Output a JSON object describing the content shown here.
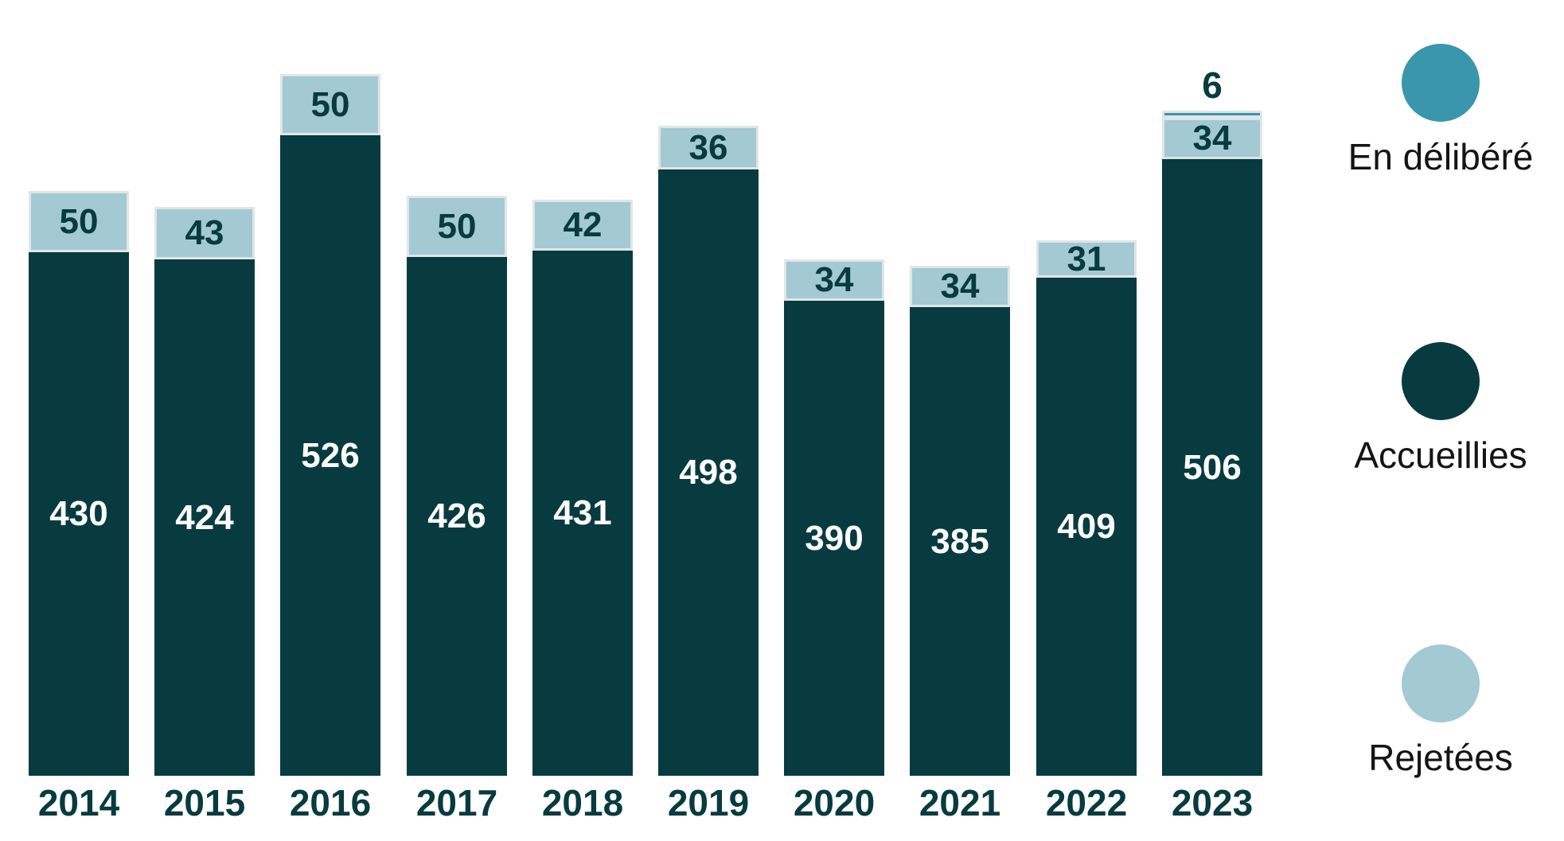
{
  "chart_data": {
    "type": "bar",
    "stacked": true,
    "categories": [
      "2014",
      "2015",
      "2016",
      "2017",
      "2018",
      "2019",
      "2020",
      "2021",
      "2022",
      "2023"
    ],
    "series": [
      {
        "name": "Accueillies",
        "key": "accueillies",
        "color": "#073b40",
        "label_color": "#ffffff",
        "values": [
          430,
          424,
          526,
          426,
          431,
          498,
          390,
          385,
          409,
          506
        ]
      },
      {
        "name": "Rejetées",
        "key": "rejetees",
        "color": "#a3c9d3",
        "label_color": "#073b40",
        "values": [
          50,
          43,
          50,
          50,
          42,
          36,
          34,
          34,
          31,
          34
        ]
      },
      {
        "name": "En délibéré",
        "key": "endelibere",
        "color": "#3996ac",
        "label_color": "#073b40",
        "label_position": "above",
        "values": [
          0,
          0,
          0,
          0,
          0,
          0,
          0,
          0,
          0,
          6
        ]
      }
    ],
    "totals": [
      480,
      467,
      576,
      476,
      473,
      534,
      424,
      419,
      440,
      546
    ],
    "title": "",
    "xlabel": "",
    "ylabel": "",
    "axes_visible": false,
    "grid": false,
    "value_labels": "inside segments, except En délibéré shown above bar",
    "legend_position": "right",
    "highlighted_category": "2023"
  },
  "legend": {
    "items": [
      {
        "label": "En délibéré",
        "color": "#3996ac"
      },
      {
        "label": "Accueillies",
        "color": "#073b40"
      },
      {
        "label": "Rejetées",
        "color": "#a3c9d3"
      }
    ]
  },
  "colors": {
    "accueillies": "#073b40",
    "rejetees": "#a3c9d3",
    "en_delibere": "#3996ac",
    "segment_border": "#e0e5e8",
    "axis_text": "#073b40",
    "background": "#ffffff"
  }
}
